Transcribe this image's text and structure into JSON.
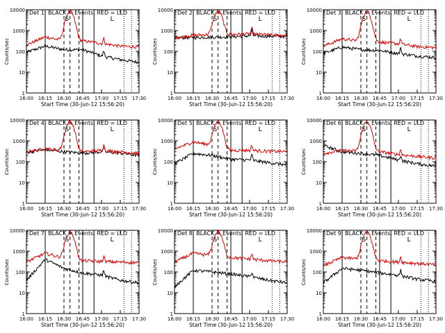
{
  "chart_data": [
    {
      "type": "line",
      "title": "Det 1: BLACK = Events, RED = LLD",
      "ylabel": "Counts/sec",
      "xlabel": "Start Time (30-Jun-12 15:56:20)",
      "yscale": "log",
      "ylim": [
        1,
        10000
      ],
      "x_ticks": [
        "16:00",
        "16:15",
        "16:30",
        "16:45",
        "17:00",
        "17:15",
        "17:30"
      ],
      "y_ticks": [
        "1",
        "10",
        "100",
        "1000",
        "10000"
      ],
      "interval_labels": [
        "S",
        "L"
      ],
      "series": [
        {
          "color": "#000000",
          "base": [
            90,
            180,
            120,
            120,
            60,
            40,
            30
          ],
          "jump_x": 16.25,
          "flare": false
        },
        {
          "color": "#dd0000",
          "base": [
            200,
            500,
            320,
            320,
            240,
            180,
            160
          ],
          "jump_x": 16.25,
          "flare": true
        }
      ]
    },
    {
      "type": "line",
      "title": "Det 2: BLACK = Events, RED = LLD",
      "ylabel": "Counts/sec",
      "xlabel": "Start Time (30-Jun-12 15:56:20)",
      "yscale": "log",
      "ylim": [
        1,
        10000
      ],
      "x_ticks": [
        "16:00",
        "16:15",
        "16:30",
        "16:45",
        "17:00",
        "17:15",
        "17:30"
      ],
      "y_ticks": [
        "1",
        "10",
        "100",
        "1000",
        "10000"
      ],
      "interval_labels": [
        "S",
        "L"
      ],
      "series": [
        {
          "color": "#000000",
          "base": [
            450,
            460,
            480,
            500,
            560,
            540,
            520
          ],
          "jump_x": 16.25,
          "flare": false
        },
        {
          "color": "#dd0000",
          "base": [
            450,
            600,
            640,
            650,
            700,
            620,
            580
          ],
          "jump_x": 16.25,
          "flare": true
        }
      ]
    },
    {
      "type": "line",
      "title": "Det 3: BLACK = Events, RED = LLD",
      "ylabel": "Counts/sec",
      "xlabel": "Start Time (30-Jun-12 15:56:20)",
      "yscale": "log",
      "ylim": [
        1,
        10000
      ],
      "x_ticks": [
        "16:00",
        "16:15",
        "16:30",
        "16:45",
        "17:00",
        "17:15",
        "17:30"
      ],
      "y_ticks": [
        "1",
        "10",
        "100",
        "1000",
        "10000"
      ],
      "interval_labels": [
        "S",
        "L"
      ],
      "series": [
        {
          "color": "#000000",
          "base": [
            80,
            160,
            120,
            110,
            80,
            60,
            50
          ],
          "jump_x": 16.25,
          "flare": false
        },
        {
          "color": "#dd0000",
          "base": [
            180,
            400,
            300,
            280,
            230,
            170,
            150
          ],
          "jump_x": 16.25,
          "flare": true
        }
      ]
    },
    {
      "type": "line",
      "title": "Det 4: BLACK = Events, RED = LLD",
      "ylabel": "Counts/sec",
      "xlabel": "Start Time (30-Jun-12 15:56:20)",
      "yscale": "log",
      "ylim": [
        1,
        10000
      ],
      "x_ticks": [
        "16:00",
        "16:15",
        "16:30",
        "16:45",
        "17:00",
        "17:15",
        "17:30"
      ],
      "y_ticks": [
        "1",
        "10",
        "100",
        "1000",
        "10000"
      ],
      "interval_labels": [
        "S",
        "L"
      ],
      "series": [
        {
          "color": "#000000",
          "base": [
            280,
            380,
            300,
            260,
            300,
            260,
            200
          ],
          "jump_x": 16.25,
          "flare": false
        },
        {
          "color": "#dd0000",
          "base": [
            300,
            420,
            340,
            300,
            350,
            300,
            250
          ],
          "jump_x": 16.25,
          "flare": true
        }
      ]
    },
    {
      "type": "line",
      "title": "Det 5: BLACK = Events, RED = LLD",
      "ylabel": "Counts/sec",
      "xlabel": "Start Time (30-Jun-12 15:56:20)",
      "yscale": "log",
      "ylim": [
        1,
        10000
      ],
      "x_ticks": [
        "16:00",
        "16:15",
        "16:30",
        "16:45",
        "17:00",
        "17:15",
        "17:30"
      ],
      "y_ticks": [
        "1",
        "10",
        "100",
        "1000",
        "10000"
      ],
      "interval_labels": [
        "S",
        "L"
      ],
      "series": [
        {
          "color": "#000000",
          "base": [
            80,
            250,
            200,
            130,
            120,
            90,
            70
          ],
          "jump_x": 16.25,
          "flare": false
        },
        {
          "color": "#dd0000",
          "base": [
            400,
            900,
            600,
            350,
            350,
            320,
            300
          ],
          "jump_x": 16.25,
          "flare": true
        }
      ]
    },
    {
      "type": "line",
      "title": "Det 6: BLACK = Events, RED = LLD",
      "ylabel": "Counts/sec",
      "xlabel": "Start Time (30-Jun-12 15:56:20)",
      "yscale": "log",
      "ylim": [
        1,
        10000
      ],
      "x_ticks": [
        "16:00",
        "16:15",
        "16:30",
        "16:45",
        "17:00",
        "17:15",
        "17:30"
      ],
      "y_ticks": [
        "1",
        "10",
        "100",
        "1000",
        "10000"
      ],
      "interval_labels": [
        "S",
        "L"
      ],
      "series": [
        {
          "color": "#000000",
          "base": [
            600,
            300,
            250,
            200,
            120,
            80,
            60
          ],
          "jump_x": 16.25,
          "flare": false
        },
        {
          "color": "#dd0000",
          "base": [
            250,
            350,
            320,
            300,
            220,
            180,
            150
          ],
          "jump_x": 16.25,
          "flare": true
        }
      ]
    },
    {
      "type": "line",
      "title": "Det 7: BLACK = Events, RED = LLD",
      "ylabel": "Counts/sec",
      "xlabel": "Start Time (30-Jun-12 15:56:20)",
      "yscale": "log",
      "ylim": [
        1,
        10000
      ],
      "x_ticks": [
        "16:00",
        "16:15",
        "16:30",
        "16:45",
        "17:00",
        "17:15",
        "17:30"
      ],
      "y_ticks": [
        "1",
        "10",
        "100",
        "1000",
        "10000"
      ],
      "interval_labels": [
        "S",
        "L"
      ],
      "series": [
        {
          "color": "#000000",
          "base": [
            40,
            400,
            150,
            90,
            70,
            40,
            30
          ],
          "jump_x": 16.25,
          "flare": false
        },
        {
          "color": "#dd0000",
          "base": [
            300,
            800,
            450,
            350,
            320,
            300,
            280
          ],
          "jump_x": 16.25,
          "flare": true
        }
      ]
    },
    {
      "type": "line",
      "title": "Det 8: BLACK = Events, RED = LLD",
      "ylabel": "Counts/sec",
      "xlabel": "Start Time (30-Jun-12 15:56:20)",
      "yscale": "log",
      "ylim": [
        1,
        10000
      ],
      "x_ticks": [
        "16:00",
        "16:15",
        "16:30",
        "16:45",
        "17:00",
        "17:15",
        "17:30"
      ],
      "y_ticks": [
        "1",
        "10",
        "100",
        "1000",
        "10000"
      ],
      "interval_labels": [
        "S",
        "L"
      ],
      "series": [
        {
          "color": "#000000",
          "base": [
            20,
            120,
            100,
            80,
            60,
            40,
            30
          ],
          "jump_x": 16.25,
          "flare": false
        },
        {
          "color": "#dd0000",
          "base": [
            300,
            800,
            600,
            500,
            420,
            350,
            300
          ],
          "jump_x": 16.25,
          "flare": true
        }
      ]
    },
    {
      "type": "line",
      "title": "Det 9: BLACK = Events, RED = LLD",
      "ylabel": "Counts/sec",
      "xlabel": "Start Time (30-Jun-12 15:56:20)",
      "yscale": "log",
      "ylim": [
        1,
        10000
      ],
      "x_ticks": [
        "16:00",
        "16:15",
        "16:30",
        "16:45",
        "17:00",
        "17:15",
        "17:30"
      ],
      "y_ticks": [
        "1",
        "10",
        "100",
        "1000",
        "10000"
      ],
      "interval_labels": [
        "S",
        "L"
      ],
      "series": [
        {
          "color": "#000000",
          "base": [
            30,
            150,
            120,
            90,
            70,
            45,
            35
          ],
          "jump_x": 16.25,
          "flare": false
        },
        {
          "color": "#dd0000",
          "base": [
            200,
            500,
            400,
            350,
            300,
            260,
            220
          ],
          "jump_x": 16.25,
          "flare": true
        }
      ]
    }
  ]
}
